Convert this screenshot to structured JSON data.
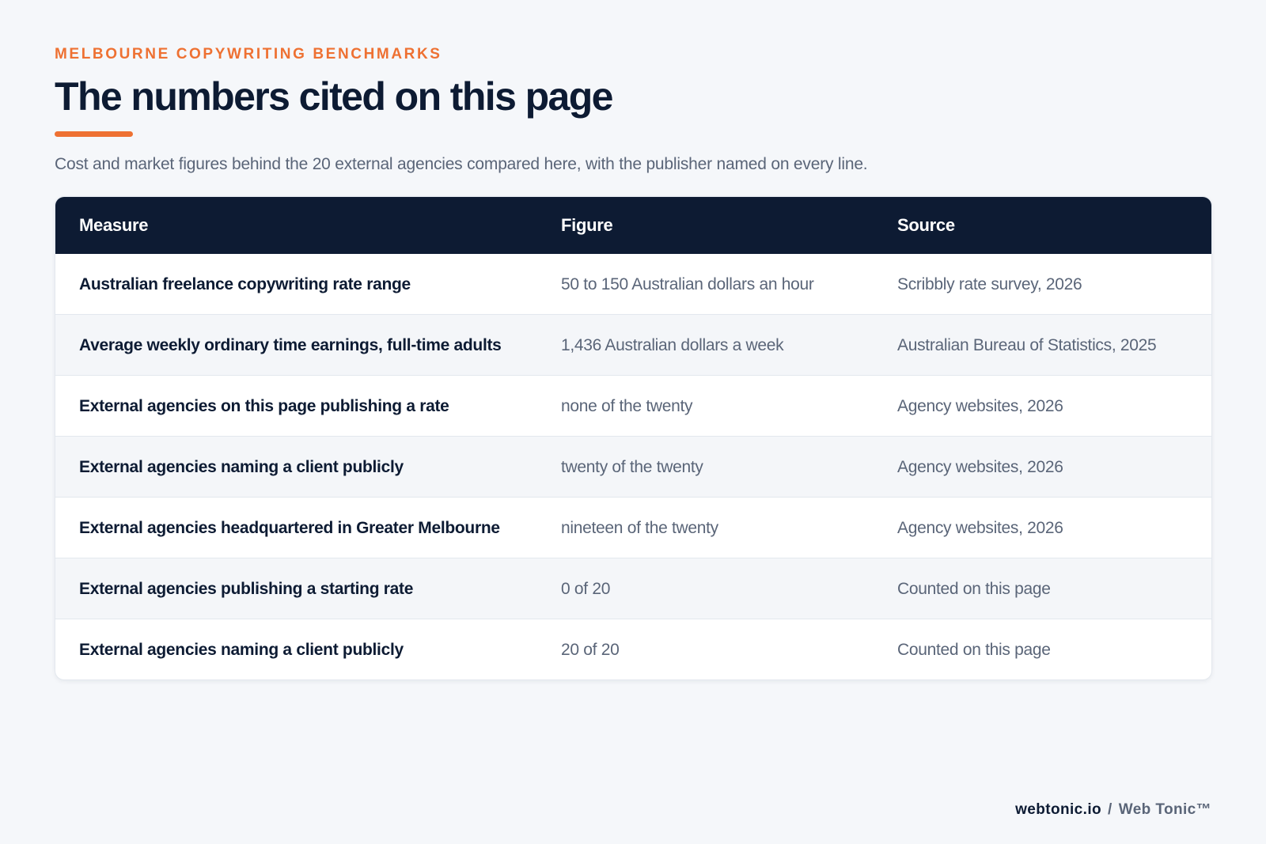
{
  "eyebrow": "MELBOURNE COPYWRITING BENCHMARKS",
  "title": "The numbers cited on this page",
  "lede": "Cost and market figures behind the 20 external agencies compared here, with the publisher named on every line.",
  "table": {
    "headers": {
      "measure": "Measure",
      "figure": "Figure",
      "source": "Source"
    },
    "rows": [
      {
        "measure": "Australian freelance copywriting rate range",
        "figure": "50 to 150 Australian dollars an hour",
        "source": "Scribbly rate survey, 2026"
      },
      {
        "measure": "Average weekly ordinary time earnings, full-time adults",
        "figure": "1,436 Australian dollars a week",
        "source": "Australian Bureau of Statistics, 2025"
      },
      {
        "measure": "External agencies on this page publishing a rate",
        "figure": "none of the twenty",
        "source": "Agency websites, 2026"
      },
      {
        "measure": "External agencies naming a client publicly",
        "figure": "twenty of the twenty",
        "source": "Agency websites, 2026"
      },
      {
        "measure": "External agencies headquartered in Greater Melbourne",
        "figure": "nineteen of the twenty",
        "source": "Agency websites, 2026"
      },
      {
        "measure": "External agencies publishing a starting rate",
        "figure": "0 of 20",
        "source": "Counted on this page"
      },
      {
        "measure": "External agencies naming a client publicly",
        "figure": "20 of 20",
        "source": "Counted on this page"
      }
    ]
  },
  "footer": {
    "domain": "webtonic.io",
    "separator": "/",
    "brand": "Web Tonic™"
  },
  "colors": {
    "accent": "#ee7132",
    "navy": "#0d1b33",
    "muted": "#5a6578",
    "background": "#f5f7fa"
  }
}
